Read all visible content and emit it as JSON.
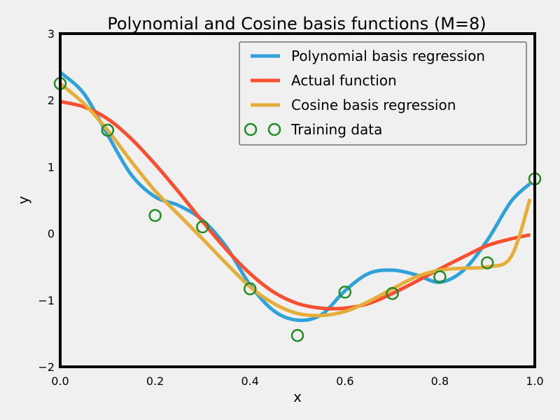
{
  "chart_data": {
    "type": "line",
    "title": "Polynomial and Cosine basis functions (M=8)",
    "xlabel": "x",
    "ylabel": "y",
    "xlim": [
      0.0,
      1.0
    ],
    "ylim": [
      -2,
      3
    ],
    "xticks": [
      "0.0",
      "0.2",
      "0.4",
      "0.6",
      "0.8",
      "1.0"
    ],
    "yticks": [
      "−2",
      "−1",
      "0",
      "1",
      "2",
      "3"
    ],
    "grid": false,
    "legend_position": "top-right",
    "series": [
      {
        "name": "Polynomial basis regression",
        "color": "#30a2da",
        "x": [
          0.0,
          0.05,
          0.1,
          0.15,
          0.2,
          0.25,
          0.3,
          0.35,
          0.4,
          0.45,
          0.5,
          0.55,
          0.6,
          0.65,
          0.7,
          0.75,
          0.8,
          0.85,
          0.9,
          0.95,
          0.99
        ],
        "y": [
          2.42,
          2.1,
          1.48,
          0.88,
          0.55,
          0.42,
          0.2,
          -0.2,
          -0.77,
          -1.16,
          -1.3,
          -1.22,
          -0.86,
          -0.6,
          -0.55,
          -0.62,
          -0.73,
          -0.55,
          -0.1,
          0.48,
          0.75
        ]
      },
      {
        "name": "Actual function",
        "color": "#fc4f30",
        "x": [
          0.0,
          0.05,
          0.1,
          0.15,
          0.2,
          0.25,
          0.3,
          0.35,
          0.4,
          0.45,
          0.5,
          0.55,
          0.6,
          0.65,
          0.7,
          0.75,
          0.8,
          0.85,
          0.9,
          0.95,
          0.99
        ],
        "y": [
          1.98,
          1.9,
          1.72,
          1.42,
          1.04,
          0.62,
          0.18,
          -0.24,
          -0.6,
          -0.88,
          -1.05,
          -1.12,
          -1.12,
          -1.05,
          -0.9,
          -0.72,
          -0.53,
          -0.35,
          -0.18,
          -0.08,
          -0.02
        ]
      },
      {
        "name": "Cosine basis regression",
        "color": "#e5ae38",
        "x": [
          0.0,
          0.05,
          0.1,
          0.15,
          0.2,
          0.25,
          0.3,
          0.35,
          0.4,
          0.45,
          0.5,
          0.55,
          0.6,
          0.65,
          0.7,
          0.75,
          0.8,
          0.85,
          0.9,
          0.95,
          0.99
        ],
        "y": [
          2.25,
          1.95,
          1.55,
          1.08,
          0.64,
          0.28,
          -0.08,
          -0.45,
          -0.8,
          -1.05,
          -1.2,
          -1.23,
          -1.17,
          -1.02,
          -0.83,
          -0.65,
          -0.55,
          -0.52,
          -0.5,
          -0.35,
          0.52
        ]
      }
    ],
    "training_data": {
      "name": "Training data",
      "color": "#228b22",
      "x": [
        0.0,
        0.1,
        0.2,
        0.3,
        0.4,
        0.5,
        0.6,
        0.7,
        0.8,
        0.9,
        1.0
      ],
      "y": [
        2.25,
        1.55,
        0.27,
        0.1,
        -0.83,
        -1.53,
        -0.88,
        -0.9,
        -0.65,
        -0.44,
        0.82
      ]
    }
  }
}
